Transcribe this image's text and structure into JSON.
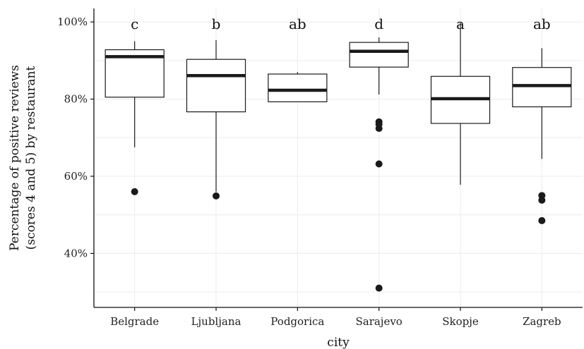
{
  "chart_data": {
    "type": "boxplot",
    "xlabel": "city",
    "ylabel_lines": [
      "Percentage of positive reviews",
      "(scores 4 and 5) by restaurant"
    ],
    "ylim": [
      0.26,
      1.035
    ],
    "yticks": [
      0.4,
      0.6,
      0.8,
      1.0
    ],
    "ytick_labels": [
      "40%",
      "60%",
      "80%",
      "100%"
    ],
    "grid": true,
    "categories": [
      "Belgrade",
      "Ljubljana",
      "Podgorica",
      "Sarajevo",
      "Skopje",
      "Zagreb"
    ],
    "group_letters": [
      "c",
      "b",
      "ab",
      "d",
      "a",
      "ab"
    ],
    "boxes": [
      {
        "city": "Belgrade",
        "lower_whisker": 0.675,
        "q1": 0.805,
        "median": 0.91,
        "q3": 0.928,
        "upper_whisker": 0.95,
        "outliers": [
          0.56
        ]
      },
      {
        "city": "Ljubljana",
        "lower_whisker": 0.56,
        "q1": 0.767,
        "median": 0.861,
        "q3": 0.903,
        "upper_whisker": 0.953,
        "outliers": [
          0.549
        ]
      },
      {
        "city": "Podgorica",
        "lower_whisker": 0.793,
        "q1": 0.793,
        "median": 0.823,
        "q3": 0.865,
        "upper_whisker": 0.87,
        "outliers": []
      },
      {
        "city": "Sarajevo",
        "lower_whisker": 0.812,
        "q1": 0.883,
        "median": 0.924,
        "q3": 0.947,
        "upper_whisker": 0.96,
        "outliers": [
          0.741,
          0.735,
          0.724,
          0.632,
          0.31
        ]
      },
      {
        "city": "Skopje",
        "lower_whisker": 0.578,
        "q1": 0.737,
        "median": 0.801,
        "q3": 0.859,
        "upper_whisker": 1.0,
        "outliers": []
      },
      {
        "city": "Zagreb",
        "lower_whisker": 0.645,
        "q1": 0.78,
        "median": 0.835,
        "q3": 0.882,
        "upper_whisker": 0.932,
        "outliers": [
          0.55,
          0.538,
          0.485
        ]
      }
    ]
  }
}
